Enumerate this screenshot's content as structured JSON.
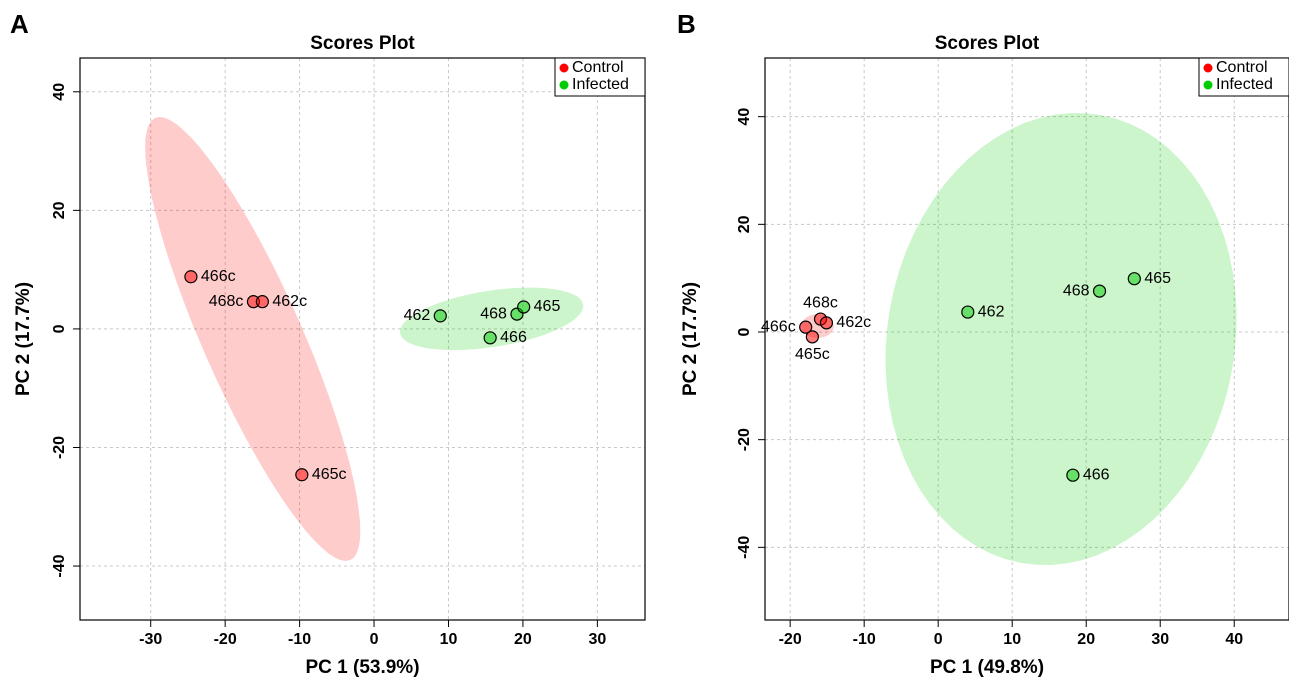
{
  "chart_data": [
    {
      "type": "scatter",
      "panel": "A",
      "title": "Scores Plot",
      "xlabel": "PC 1 (53.9%)",
      "ylabel": "PC 2 (17.7%)",
      "xlim": [
        -39.5,
        36.4
      ],
      "ylim": [
        -49.1,
        45.7
      ],
      "xticks": [
        -30,
        -20,
        -10,
        0,
        10,
        20,
        30
      ],
      "yticks": [
        -40,
        -20,
        0,
        20,
        40
      ],
      "grid": true,
      "legend": "topright",
      "series": [
        {
          "name": "Control",
          "color": "#ff0000",
          "x": [
            -24.6,
            -16.2,
            -15.0,
            -9.7
          ],
          "y": [
            8.8,
            4.6,
            4.6,
            -24.6
          ],
          "labels": [
            "466c",
            "468c",
            "462c",
            "465c"
          ],
          "ellipse": {
            "center": [
              -16.3,
              -1.7
            ],
            "axes": [
              [
                -13.1,
                37.3
              ],
              [
                6.1,
                3.4
              ]
            ]
          }
        },
        {
          "name": "Infected",
          "color": "#00cc00",
          "x": [
            8.9,
            19.2,
            20.1,
            15.6
          ],
          "y": [
            2.2,
            2.5,
            3.7,
            -1.5
          ],
          "labels": [
            "462",
            "468",
            "465",
            "466"
          ],
          "ellipse": {
            "center": [
              15.8,
              1.7
            ],
            "axes": [
              [
                12.3,
                2.4
              ],
              [
                0.56,
                -4.7
              ]
            ]
          }
        }
      ]
    },
    {
      "type": "scatter",
      "panel": "B",
      "title": "Scores Plot",
      "xlabel": "PC 1 (49.8%)",
      "ylabel": "PC 2 (17.7%)",
      "xlim": [
        -23.4,
        47.4
      ],
      "ylim": [
        -53.5,
        50.9
      ],
      "xticks": [
        -20,
        -10,
        0,
        10,
        20,
        30,
        40
      ],
      "yticks": [
        -40,
        -20,
        0,
        20,
        40
      ],
      "grid": true,
      "legend": "topright",
      "series": [
        {
          "name": "Control",
          "color": "#ff0000",
          "x": [
            -17.9,
            -15.9,
            -15.1,
            -17.0
          ],
          "y": [
            0.9,
            2.4,
            1.7,
            -0.9
          ],
          "labels": [
            "466c",
            "468c",
            "462c",
            "465c"
          ],
          "ellipse": {
            "center": [
              -16.3,
              1.1
            ],
            "axes": [
              [
                2.2,
                0
              ],
              [
                0,
                2.2
              ]
            ]
          }
        },
        {
          "name": "Infected",
          "color": "#00cc00",
          "x": [
            4.0,
            21.8,
            26.5,
            18.2
          ],
          "y": [
            3.7,
            7.6,
            9.9,
            -26.6
          ],
          "labels": [
            "462",
            "468",
            "465",
            "466"
          ],
          "ellipse": {
            "center": [
              16.6,
              -1.3
            ],
            "axes": [
              [
                5.4,
                41.6
              ],
              [
                23.1,
                -5.8
              ]
            ]
          }
        }
      ]
    }
  ]
}
